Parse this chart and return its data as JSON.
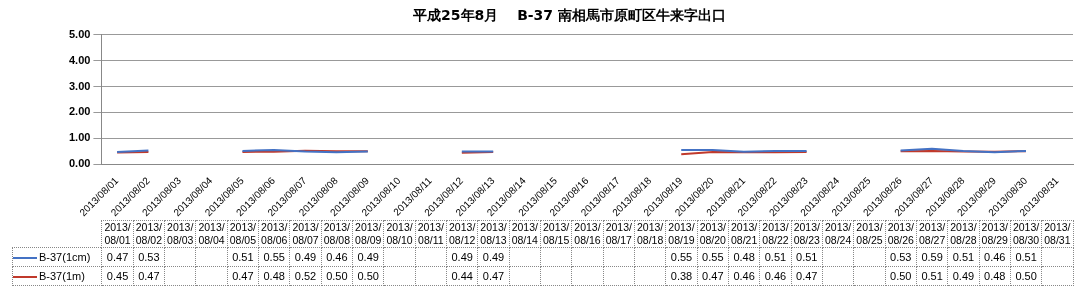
{
  "chart_data": {
    "type": "line",
    "title": "平成25年8月　 B-37 南相馬市原町区牛来字出口",
    "categories": [
      "2013/08/01",
      "2013/08/02",
      "2013/08/03",
      "2013/08/04",
      "2013/08/05",
      "2013/08/06",
      "2013/08/07",
      "2013/08/08",
      "2013/08/09",
      "2013/08/10",
      "2013/08/11",
      "2013/08/12",
      "2013/08/13",
      "2013/08/14",
      "2013/08/15",
      "2013/08/16",
      "2013/08/17",
      "2013/08/18",
      "2013/08/19",
      "2013/08/20",
      "2013/08/21",
      "2013/08/22",
      "2013/08/23",
      "2013/08/24",
      "2013/08/25",
      "2013/08/26",
      "2013/08/27",
      "2013/08/28",
      "2013/08/29",
      "2013/08/30",
      "2013/08/31"
    ],
    "series": [
      {
        "name": "B-37(1cm)",
        "color": "#4472c4",
        "values": [
          0.47,
          0.53,
          null,
          null,
          0.51,
          0.55,
          0.49,
          0.46,
          0.49,
          null,
          null,
          0.49,
          0.49,
          null,
          null,
          null,
          null,
          null,
          0.55,
          0.55,
          0.48,
          0.51,
          0.51,
          null,
          null,
          0.53,
          0.59,
          0.51,
          0.46,
          0.51,
          null
        ],
        "value_labels": [
          "0.47",
          "0.53",
          null,
          null,
          "0.51",
          "0.55",
          "0.49",
          "0.46",
          "0.49",
          null,
          null,
          "0.49",
          "0.49",
          null,
          null,
          null,
          null,
          null,
          "0.55",
          "0.55",
          "0.48",
          "0.51",
          "0.51",
          null,
          null,
          "0.53",
          "0.59",
          "0.51",
          "0.46",
          "0.51",
          null
        ]
      },
      {
        "name": "B-37(1m)",
        "color": "#c0392b",
        "values": [
          0.45,
          0.47,
          null,
          null,
          0.47,
          0.48,
          0.52,
          0.5,
          0.5,
          null,
          null,
          0.44,
          0.47,
          null,
          null,
          null,
          null,
          null,
          0.38,
          0.47,
          0.46,
          0.46,
          0.47,
          null,
          null,
          0.5,
          0.51,
          0.49,
          0.48,
          0.5,
          null
        ],
        "value_labels": [
          "0.45",
          "0.47",
          null,
          null,
          "0.47",
          "0.48",
          "0.52",
          "0.50",
          "0.50",
          null,
          null,
          "0.44",
          "0.47",
          null,
          null,
          null,
          null,
          null,
          "0.38",
          "0.47",
          "0.46",
          "0.46",
          "0.47",
          null,
          null,
          "0.50",
          "0.51",
          "0.49",
          "0.48",
          "0.50",
          null
        ]
      }
    ],
    "ylim": [
      0,
      5
    ],
    "yticks": [
      {
        "value": 0,
        "label": "0.00"
      },
      {
        "value": 1,
        "label": "1.00"
      },
      {
        "value": 2,
        "label": "2.00"
      },
      {
        "value": 3,
        "label": "3.00"
      },
      {
        "value": 4,
        "label": "4.00"
      },
      {
        "value": 5,
        "label": "5.00"
      }
    ],
    "grid": "y",
    "legend": "bottom",
    "marker": "none",
    "line_style": "solid"
  }
}
